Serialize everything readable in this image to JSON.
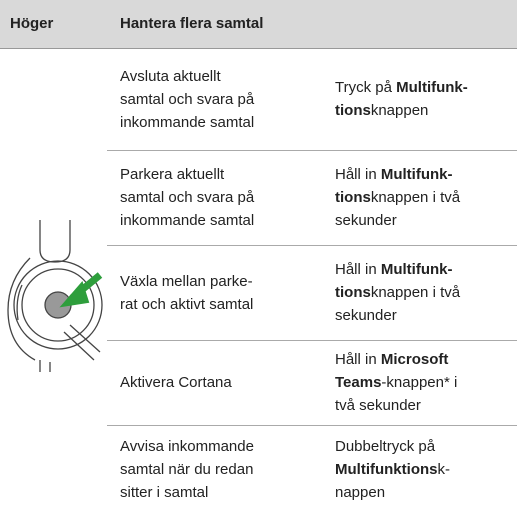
{
  "header": {
    "side": "Höger",
    "title": "Hantera flera samtal"
  },
  "rows": [
    {
      "action": [
        "Avsluta aktuellt",
        "samtal och svara på",
        "inkommande samtal"
      ],
      "instruction": [
        [
          {
            "text": "Tryck på "
          },
          {
            "text": "Multifunk-",
            "bold": true
          }
        ],
        [
          {
            "text": "tions",
            "bold": true
          },
          {
            "text": "knappen"
          }
        ]
      ]
    },
    {
      "action": [
        "Parkera aktuellt",
        "samtal och svara på",
        "inkommande samtal"
      ],
      "instruction": [
        [
          {
            "text": "Håll in "
          },
          {
            "text": "Multifunk-",
            "bold": true
          }
        ],
        [
          {
            "text": "tions",
            "bold": true
          },
          {
            "text": "knappen i två"
          }
        ],
        [
          {
            "text": "sekunder"
          }
        ]
      ]
    },
    {
      "action": [
        "Växla mellan parke-",
        "rat och aktivt samtal"
      ],
      "instruction": [
        [
          {
            "text": "Håll in "
          },
          {
            "text": "Multifunk-",
            "bold": true
          }
        ],
        [
          {
            "text": "tions",
            "bold": true
          },
          {
            "text": "knappen i två"
          }
        ],
        [
          {
            "text": "sekunder"
          }
        ]
      ]
    },
    {
      "action": [
        "Aktivera Cortana"
      ],
      "instruction": [
        [
          {
            "text": "Håll in "
          },
          {
            "text": "Microsoft",
            "bold": true
          }
        ],
        [
          {
            "text": "Teams",
            "bold": true
          },
          {
            "text": "-knappen* i"
          }
        ],
        [
          {
            "text": "två sekunder"
          }
        ]
      ]
    },
    {
      "action": [
        "Avvisa inkommande",
        "samtal när du redan",
        "sitter i samtal"
      ],
      "instruction": [
        [
          {
            "text": "Dubbeltryck på"
          }
        ],
        [
          {
            "text": "Multifunktions",
            "bold": true
          },
          {
            "text": "k-"
          }
        ],
        [
          {
            "text": "nappen"
          }
        ]
      ]
    }
  ]
}
